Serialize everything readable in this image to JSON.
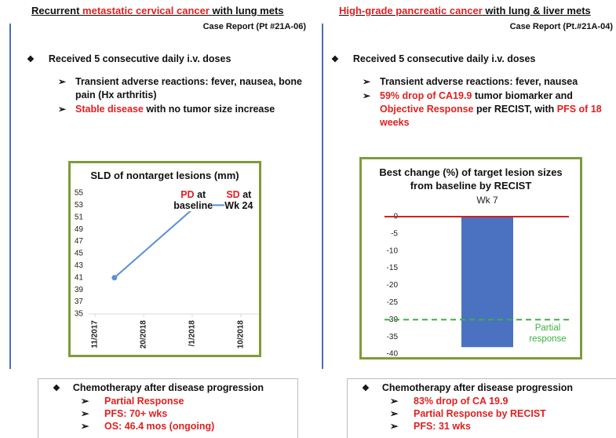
{
  "panels": [
    {
      "title": [
        {
          "text": "Recurrent "
        },
        {
          "text": "metastatic cervical cancer",
          "color": "#e02020"
        },
        {
          "text": " with lung mets"
        }
      ],
      "subtitle": "Case Report (Pt #21A-06)",
      "bullet": "Received 5 consecutive daily i.v. doses",
      "items": [
        [
          {
            "text": "Transient adverse reactions: fever, nausea, bone pain (Hx arthritis)"
          }
        ],
        [
          {
            "text": "Stable disease",
            "color": "#e02020"
          },
          {
            "text": " with no tumor size increase"
          }
        ]
      ],
      "followup": {
        "heading": "Chemotherapy after disease progression",
        "color": "#e02020",
        "items": [
          "Partial Response",
          "PFS: 70+ wks",
          "OS: 46.4 mos (ongoing)"
        ]
      }
    },
    {
      "title": [
        {
          "text": "High-grade pancreatic cancer",
          "color": "#e02020"
        },
        {
          "text": " with lung & liver mets"
        }
      ],
      "subtitle": "Case Report (Pt.#21A-04)",
      "bullet": "Received 5 consecutive daily i.v. doses",
      "items": [
        [
          {
            "text": "Transient adverse reactions: fever, nausea"
          }
        ],
        [
          {
            "text": "59% drop of CA19.9",
            "color": "#e02020"
          },
          {
            "text": " tumor biomarker and "
          },
          {
            "text": "Objective Response",
            "color": "#e02020"
          },
          {
            "text": " per RECIST, with "
          },
          {
            "text": "PFS of 18 weeks",
            "color": "#e02020"
          }
        ]
      ],
      "followup": {
        "heading": "Chemotherapy after disease progression",
        "color": "#e02020",
        "items": [
          "83% drop of CA 19.9",
          "Partial Response by RECIST",
          "PFS:  31 wks"
        ]
      }
    }
  ],
  "chart_data": [
    {
      "type": "line",
      "title": "SLD of nontarget lesions (mm)",
      "x": [
        0.4,
        2.1,
        3.15
      ],
      "values": [
        41,
        53,
        53
      ],
      "color": "#5b8fd0",
      "xlim": [
        -0.13,
        3.42
      ],
      "xticks": [
        {
          "value": 0,
          "label": "11/2017"
        },
        {
          "value": 1,
          "label": "20/2018"
        },
        {
          "value": 2,
          "label": "/1/2018"
        },
        {
          "value": 3,
          "label": "10/2018"
        }
      ],
      "ylim": [
        35,
        55
      ],
      "yticks": [
        35,
        37,
        39,
        41,
        43,
        45,
        47,
        49,
        51,
        53,
        55
      ],
      "annotations": [
        {
          "point": 1,
          "label": "PD",
          "text": "at",
          "line2": "baseline",
          "color": "#e02020"
        },
        {
          "point": 2,
          "label": "SD",
          "text": "at",
          "line2": "Wk 24",
          "color": "#e02020"
        }
      ]
    },
    {
      "type": "bar",
      "title": "Best change (%) of target lesion sizes from baseline by RECIST",
      "categories": [
        "Wk 7"
      ],
      "values": [
        -38
      ],
      "color": "#4a72c0",
      "ylim": [
        -40,
        2.5
      ],
      "yticks": [
        0,
        -5,
        -10,
        -15,
        -20,
        -25,
        -30,
        -35,
        -40
      ],
      "reference_lines": [
        {
          "value": 0,
          "color": "#d42020"
        },
        {
          "value": -30,
          "color": "#3cb043",
          "dashed": true,
          "label": "Partial response"
        }
      ]
    }
  ]
}
